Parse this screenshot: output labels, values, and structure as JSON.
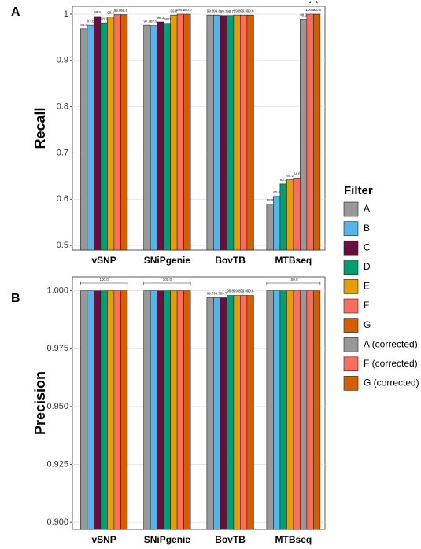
{
  "chart_data": [
    {
      "type": "bar",
      "panel": "A",
      "y_label": "Recall",
      "legend_title": "Filter",
      "categories": [
        "vSNP",
        "SNiPgenie",
        "BovTB",
        "MTBseq"
      ],
      "ylim": [
        0.49,
        1.017
      ],
      "yticks": [
        0.5,
        0.6,
        0.7,
        0.8,
        0.9,
        1.0
      ],
      "grid": true,
      "series": [
        {
          "name": "A",
          "color": "#999999",
          "values": [
            0.968,
            0.976,
            0.998,
            0.589
          ],
          "value_labels": [
            "96.8",
            "97.6",
            "99.8",
            "58.9"
          ]
        },
        {
          "name": "B",
          "color": "#56b4e9",
          "values": [
            0.976,
            0.975,
            0.998,
            0.606
          ],
          "value_labels": [
            "97.6",
            "97.5",
            "99.8",
            "60.6"
          ]
        },
        {
          "name": "C",
          "color": "#6b0d3e",
          "values": [
            0.995,
            0.983,
            0.997,
            null
          ],
          "value_labels": [
            "99.5",
            "98.3",
            "99.7",
            null
          ]
        },
        {
          "name": "D",
          "color": "#009e73",
          "values": [
            0.981,
            0.98,
            0.997,
            0.633
          ],
          "value_labels": [
            "98.1",
            "98.0",
            "99.7",
            "63.3"
          ]
        },
        {
          "name": "E",
          "color": "#e69f00",
          "values": [
            0.994,
            0.998,
            0.998,
            0.642
          ],
          "value_labels": [
            "99.4",
            "99.8",
            "99.8",
            "64.2"
          ]
        },
        {
          "name": "F",
          "color": "#fa6e5f",
          "values": [
            0.999,
            1.0,
            0.998,
            0.646
          ],
          "value_labels": [
            "99.9",
            "100.0",
            "99.8",
            "64.6"
          ]
        },
        {
          "name": "G",
          "color": "#d55e00",
          "values": [
            0.999,
            1.0,
            0.998,
            null
          ],
          "value_labels": [
            "99.9",
            "100.0",
            "99.8",
            null
          ]
        },
        {
          "name": "A (corrected)",
          "color": "#999999",
          "values": [
            null,
            null,
            null,
            0.989
          ],
          "value_labels": [
            null,
            null,
            null,
            "98.9"
          ]
        },
        {
          "name": "F (corrected)",
          "color": "#fa6e5f",
          "values": [
            null,
            null,
            null,
            1.0
          ],
          "value_labels": [
            null,
            null,
            null,
            "100.0"
          ],
          "annotation": "*"
        },
        {
          "name": "G (corrected)",
          "color": "#d55e00",
          "values": [
            null,
            null,
            null,
            1.0
          ],
          "value_labels": [
            null,
            null,
            null,
            "100.0"
          ],
          "annotation": "*"
        }
      ]
    },
    {
      "type": "bar",
      "panel": "B",
      "y_label": "Precision",
      "categories": [
        "vSNP",
        "SNiPgenie",
        "BovTB",
        "MTBseq"
      ],
      "ylim": [
        0.897,
        1.006
      ],
      "yticks": [
        {
          "value": 0.9,
          "label": "0.900"
        },
        {
          "value": 0.925,
          "label": "0.925"
        },
        {
          "value": 0.95,
          "label": "0.950"
        },
        {
          "value": 0.975,
          "label": "0.975"
        },
        {
          "value": 1.0,
          "label": "1.000"
        }
      ],
      "grid": true,
      "group_labels": [
        "100.0",
        "100.0",
        null,
        "100.0"
      ],
      "series": [
        {
          "color": "#999999",
          "values": [
            1.0,
            1.0,
            0.997,
            1.0
          ],
          "value_labels": [
            null,
            null,
            "99.7",
            null
          ]
        },
        {
          "color": "#56b4e9",
          "values": [
            1.0,
            1.0,
            0.997,
            1.0
          ],
          "value_labels": [
            null,
            null,
            "99.7",
            null
          ]
        },
        {
          "color": "#6b0d3e",
          "values": [
            1.0,
            1.0,
            0.997,
            null
          ],
          "value_labels": [
            null,
            null,
            "99.7",
            null
          ]
        },
        {
          "color": "#009e73",
          "values": [
            1.0,
            1.0,
            0.998,
            1.0
          ],
          "value_labels": [
            null,
            null,
            "99.8",
            null
          ]
        },
        {
          "color": "#e69f00",
          "values": [
            1.0,
            1.0,
            0.998,
            1.0
          ],
          "value_labels": [
            null,
            null,
            "99.8",
            null
          ]
        },
        {
          "color": "#fa6e5f",
          "values": [
            1.0,
            1.0,
            0.998,
            1.0
          ],
          "value_labels": [
            null,
            null,
            "99.8",
            null
          ]
        },
        {
          "color": "#d55e00",
          "values": [
            1.0,
            1.0,
            0.998,
            null
          ],
          "value_labels": [
            null,
            null,
            "99.8",
            null
          ]
        },
        {
          "color": "#999999",
          "values": [
            null,
            null,
            null,
            1.0
          ]
        },
        {
          "color": "#fa6e5f",
          "values": [
            null,
            null,
            null,
            1.0
          ]
        },
        {
          "color": "#d55e00",
          "values": [
            null,
            null,
            null,
            1.0
          ]
        }
      ]
    }
  ]
}
